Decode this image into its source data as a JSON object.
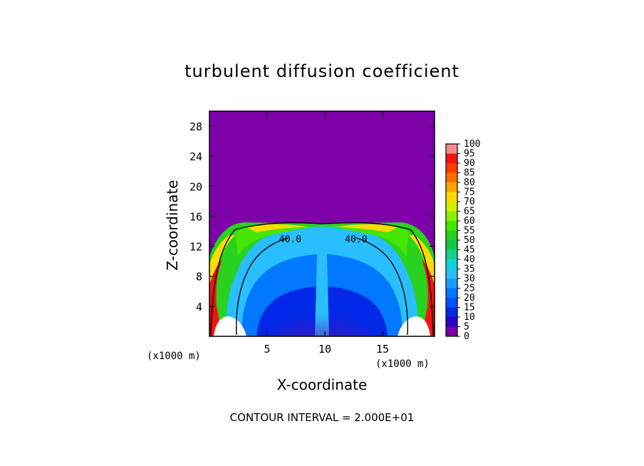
{
  "chart_data": {
    "type": "heatmap",
    "title": "turbulent diffusion coefficient",
    "xlabel": "X-coordinate",
    "ylabel": "Z-coordinate",
    "x_unit_note": "(x1000 m)",
    "x_ticks": [
      5,
      10,
      15
    ],
    "y_ticks": [
      4,
      8,
      12,
      16,
      20,
      24,
      28
    ],
    "xlim": [
      0,
      19.5
    ],
    "ylim": [
      0,
      30
    ],
    "colorbar": {
      "levels": [
        0,
        5,
        10,
        15,
        20,
        25,
        30,
        35,
        40,
        45,
        50,
        55,
        60,
        65,
        70,
        75,
        80,
        85,
        90,
        95,
        100
      ],
      "colors": [
        "#7d00a8",
        "#2800c8",
        "#0028e6",
        "#0050ff",
        "#0078ff",
        "#1e9bff",
        "#28beff",
        "#14d2d2",
        "#14d28c",
        "#14c846",
        "#28d21e",
        "#46e600",
        "#8cf000",
        "#d2f000",
        "#ffdc00",
        "#ffa500",
        "#ff6e00",
        "#ff3c00",
        "#f01414",
        "#f08c8c"
      ]
    },
    "contour_labels": [
      {
        "text": "40.0",
        "x": 7.0,
        "z": 14.6
      },
      {
        "text": "40.0",
        "x": 12.7,
        "z": 14.6
      }
    ],
    "contour_interval": "CONTOUR INTERVAL = 2.000E+01",
    "background_value": 0,
    "grid": false,
    "legend": "right"
  }
}
